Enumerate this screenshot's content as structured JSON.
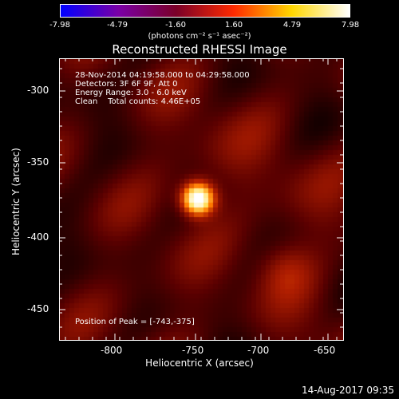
{
  "colorbar": {
    "tick_labels": [
      "-7.98",
      "-4.79",
      "-1.60",
      "1.60",
      "4.79",
      "7.98"
    ],
    "unit_label": "(photons cm⁻² s⁻¹ asec⁻²)",
    "colors": [
      "#0000ff",
      "#7a00a6",
      "#7a0028",
      "#ff2a00",
      "#ffd600",
      "#ffffff"
    ]
  },
  "title": "Reconstructed RHESSI Image",
  "annotations": {
    "time_range": "28-Nov-2014 04:19:58.000 to 04:29:58.000",
    "detectors": "Detectors: 3F 6F 9F, Att 0",
    "energy_range": "Energy Range: 3.0 - 6.0 keV",
    "method": "Clean    Total counts: 4.46E+05",
    "peak_position": "Position of Peak = [-743,-375]"
  },
  "axes": {
    "x_title": "Heliocentric X (arcsec)",
    "y_title": "Heliocentric Y (arcsec)",
    "x_ticks": [
      "-800",
      "-750",
      "-700",
      "-650"
    ],
    "y_ticks": [
      "-300",
      "-350",
      "-400",
      "-450"
    ]
  },
  "image": {
    "peak_x_arcsec": -743,
    "peak_y_arcsec": -375,
    "x_range": [
      -838,
      -642
    ],
    "y_range": [
      -470,
      -282
    ],
    "colormap": [
      "#000000",
      "#5a0000",
      "#b01e00",
      "#ff7a00",
      "#ffe060",
      "#ffffff"
    ]
  },
  "timestamp": "14-Aug-2017 09:35"
}
